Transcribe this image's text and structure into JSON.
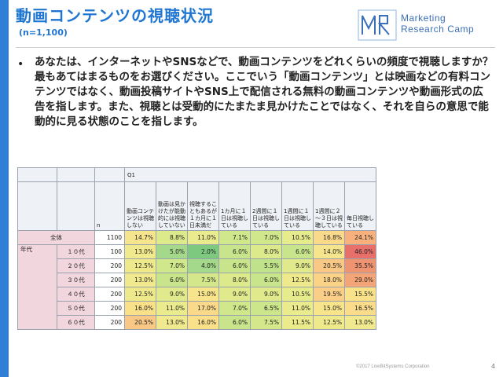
{
  "header": {
    "title": "動画コンテンツの視聴状況",
    "subtitle": "(n=1,100)",
    "logo_line1": "Marketing",
    "logo_line2": "Research Camp",
    "logo_mark": "MR"
  },
  "question": "あなたは、インターネットやSNSなどで、動画コンテンツをどれくらいの頻度で視聴しますか？最もあてはまるものをお選びください。ここでいう「動画コンテンツ」とは映画などの有料コンテンツではなく、動画投稿サイトやSNS上で配信される無料の動画コンテンツや動画形式の広告を指します。また、視聴とは受動的にたまたま見かけたことではなく、それを自らの意思で能動的に見る状態のことを指します。",
  "table": {
    "q_label": "Q1",
    "n_label": "n",
    "age_group_label": "年代",
    "columns": [
      "動画コンテンツは視聴しない",
      "動画は見かけたが能動的には視聴していない",
      "視聴することもあるが１カ月に１日未満だ",
      "1カ月に１日は視聴している",
      "2週間に１日は視聴している",
      "1週間に１日は視聴している",
      "1週間に２～３日は視聴している",
      "毎日視聴している"
    ],
    "rows": [
      {
        "label": "全体",
        "n": "1100",
        "values": [
          "14.7%",
          "8.8%",
          "11.0%",
          "7.1%",
          "7.0%",
          "10.5%",
          "16.8%",
          "24.1%"
        ],
        "colors": [
          "#f6e58d",
          "#dcea8c",
          "#eaeb8c",
          "#d0e88b",
          "#d0e88b",
          "#e6eb8c",
          "#fbd98b",
          "#f8b07c"
        ]
      },
      {
        "label": "１０代",
        "n": "100",
        "values": [
          "13.0%",
          "5.0%",
          "2.0%",
          "6.0%",
          "8.0%",
          "6.0%",
          "14.0%",
          "46.0%"
        ],
        "colors": [
          "#f0e98d",
          "#a4d88a",
          "#7cc97f",
          "#c8e58b",
          "#dcea8c",
          "#c8e58b",
          "#f6e58d",
          "#e8706a"
        ]
      },
      {
        "label": "２０代",
        "n": "200",
        "values": [
          "12.5%",
          "7.0%",
          "4.0%",
          "6.0%",
          "5.5%",
          "9.0%",
          "20.5%",
          "35.5%"
        ],
        "colors": [
          "#eeea8c",
          "#d0e88b",
          "#a4d88a",
          "#c8e58b",
          "#c0e28a",
          "#e0ea8c",
          "#f9c884",
          "#ef9471"
        ]
      },
      {
        "label": "３０代",
        "n": "200",
        "values": [
          "13.0%",
          "6.0%",
          "7.5%",
          "8.0%",
          "6.0%",
          "12.5%",
          "18.0%",
          "29.0%"
        ],
        "colors": [
          "#f0e98d",
          "#c8e58b",
          "#d4e88b",
          "#dcea8c",
          "#c8e58b",
          "#eeea8c",
          "#fbd387",
          "#f4a577"
        ]
      },
      {
        "label": "４０代",
        "n": "200",
        "values": [
          "12.5%",
          "9.0%",
          "15.0%",
          "9.0%",
          "9.0%",
          "10.5%",
          "19.5%",
          "15.5%"
        ],
        "colors": [
          "#eeea8c",
          "#e0ea8c",
          "#f8e48b",
          "#e0ea8c",
          "#e0ea8c",
          "#e6eb8c",
          "#face86",
          "#fae28a"
        ]
      },
      {
        "label": "５０代",
        "n": "200",
        "values": [
          "16.0%",
          "11.0%",
          "17.0%",
          "7.0%",
          "6.5%",
          "11.0%",
          "15.0%",
          "16.5%"
        ],
        "colors": [
          "#fbe08a",
          "#eaeb8c",
          "#fbd98b",
          "#d0e88b",
          "#cce68b",
          "#eaeb8c",
          "#f8e48b",
          "#fbdc8a"
        ]
      },
      {
        "label": "６０代",
        "n": "200",
        "values": [
          "20.5%",
          "13.0%",
          "16.0%",
          "6.0%",
          "7.5%",
          "11.5%",
          "12.5%",
          "13.0%"
        ],
        "colors": [
          "#f9c884",
          "#f0e98d",
          "#fbe08a",
          "#c8e58b",
          "#d4e88b",
          "#ebeb8c",
          "#eeea8c",
          "#f0e98d"
        ]
      }
    ]
  },
  "footer": {
    "copyright": "©2017 LiveBitSystems Corporation",
    "page_number": "4"
  }
}
